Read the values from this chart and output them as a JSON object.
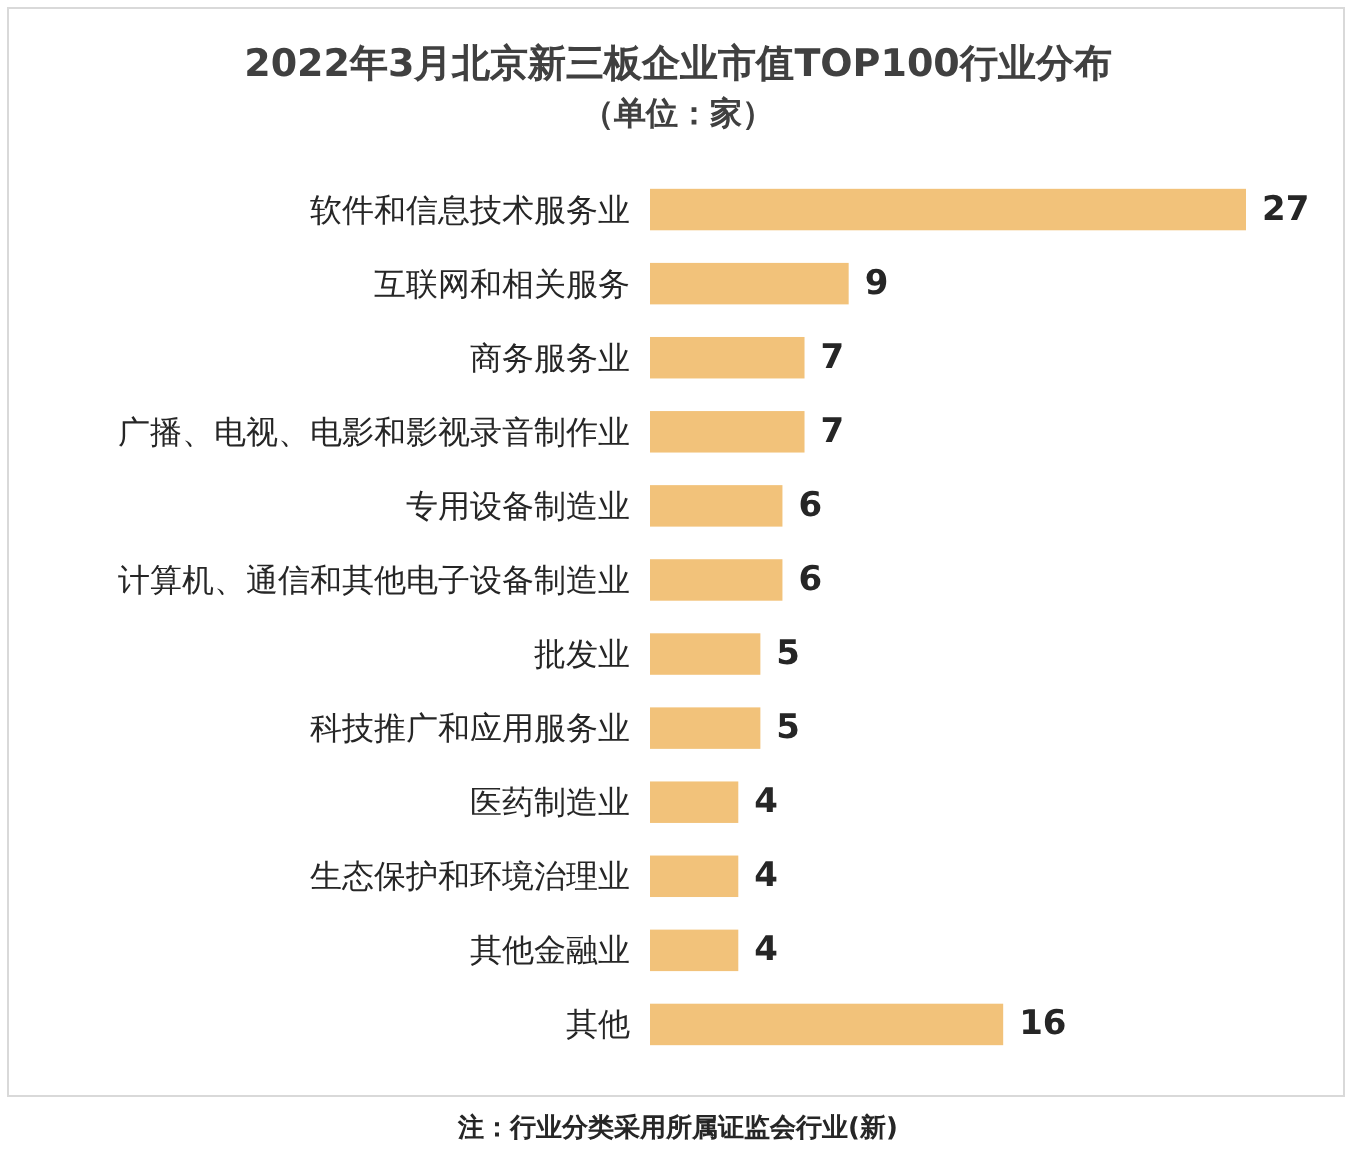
{
  "chart_data": {
    "type": "bar",
    "orientation": "horizontal",
    "title": "2022年3月北京新三板企业市值TOP100行业分布",
    "subtitle": "（单位：家）",
    "categories": [
      "软件和信息技术服务业",
      "互联网和相关服务",
      "商务服务业",
      "广播、电视、电影和影视录音制作业",
      "专用设备制造业",
      "计算机、通信和其他电子设备制造业",
      "批发业",
      "科技推广和应用服务业",
      "医药制造业",
      "生态保护和环境治理业",
      "其他金融业",
      "其他"
    ],
    "values": [
      27,
      9,
      7,
      7,
      6,
      6,
      5,
      5,
      4,
      4,
      4,
      16
    ],
    "color": "#f2c27a",
    "data_labels": true,
    "annotations": [
      "注：行业分类采用所属证监会行业(新)"
    ]
  }
}
